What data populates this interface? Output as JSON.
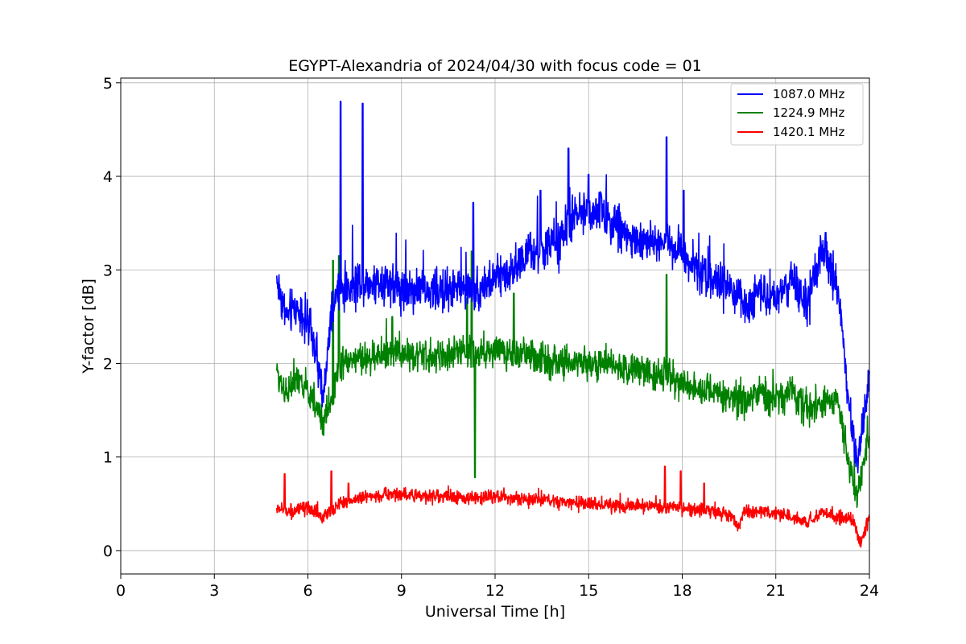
{
  "chart_data": {
    "type": "line",
    "title": "EGYPT-Alexandria of 2024/04/30 with focus code = 01",
    "xlabel": "Universal Time [h]",
    "ylabel": "Y-factor [dB]",
    "xlim": [
      0,
      24
    ],
    "ylim": [
      -0.25,
      5.05
    ],
    "xticks": [
      0,
      3,
      6,
      9,
      12,
      15,
      18,
      21,
      24
    ],
    "yticks": [
      0,
      1,
      2,
      3,
      4,
      5
    ],
    "grid": true,
    "legend_position": "top-right",
    "series": [
      {
        "name": "1087.0 MHz",
        "color": "#0000ff",
        "x": [
          5.0,
          5.3,
          5.6,
          5.9,
          6.2,
          6.5,
          6.6,
          6.8,
          7.0,
          7.3,
          7.6,
          8.0,
          8.5,
          9.0,
          9.5,
          10.0,
          10.5,
          11.0,
          11.5,
          12.0,
          12.5,
          13.0,
          13.5,
          14.0,
          14.5,
          15.0,
          15.5,
          16.0,
          16.5,
          17.0,
          17.5,
          18.0,
          18.5,
          19.0,
          19.5,
          20.0,
          20.5,
          21.0,
          21.5,
          22.0,
          22.5,
          23.0,
          23.3,
          23.6,
          23.8,
          24.0
        ],
        "y": [
          2.9,
          2.5,
          2.6,
          2.5,
          2.2,
          1.6,
          2.0,
          2.6,
          2.8,
          2.8,
          2.9,
          2.85,
          2.9,
          2.8,
          2.8,
          2.75,
          2.8,
          2.8,
          2.8,
          2.9,
          3.0,
          3.15,
          3.2,
          3.3,
          3.55,
          3.65,
          3.6,
          3.45,
          3.3,
          3.3,
          3.3,
          3.2,
          3.0,
          2.9,
          2.8,
          2.6,
          2.8,
          2.7,
          2.9,
          2.6,
          3.2,
          2.8,
          1.7,
          0.9,
          1.4,
          1.9
        ],
        "spikes": [
          [
            7.05,
            4.8
          ],
          [
            7.75,
            4.78
          ],
          [
            14.35,
            4.3
          ],
          [
            17.5,
            4.42
          ],
          [
            15.0,
            4.02
          ],
          [
            11.3,
            3.72
          ],
          [
            13.45,
            3.85
          ],
          [
            18.05,
            3.85
          ],
          [
            22.6,
            3.4
          ]
        ]
      },
      {
        "name": "1224.9 MHz",
        "color": "#008000",
        "x": [
          5.0,
          5.3,
          5.6,
          5.9,
          6.2,
          6.5,
          6.8,
          7.0,
          7.5,
          8.0,
          8.5,
          9.0,
          9.5,
          10.0,
          10.5,
          11.0,
          11.5,
          12.0,
          12.5,
          13.0,
          13.5,
          14.0,
          14.5,
          15.0,
          15.5,
          16.0,
          16.5,
          17.0,
          17.5,
          18.0,
          18.5,
          19.0,
          19.5,
          20.0,
          20.5,
          21.0,
          21.5,
          22.0,
          22.5,
          23.0,
          23.3,
          23.6,
          23.8,
          24.0
        ],
        "y": [
          1.9,
          1.7,
          1.8,
          1.75,
          1.6,
          1.35,
          1.7,
          2.0,
          2.05,
          2.05,
          2.1,
          2.1,
          2.1,
          2.05,
          2.1,
          2.15,
          2.1,
          2.15,
          2.1,
          2.1,
          2.05,
          2.0,
          2.0,
          2.0,
          2.0,
          1.95,
          1.95,
          1.9,
          1.9,
          1.8,
          1.7,
          1.7,
          1.65,
          1.6,
          1.7,
          1.6,
          1.7,
          1.5,
          1.6,
          1.6,
          1.0,
          0.6,
          0.9,
          1.2
        ],
        "spikes": [
          [
            11.35,
            0.78
          ],
          [
            7.0,
            3.15
          ],
          [
            6.8,
            3.1
          ],
          [
            11.25,
            3.2
          ],
          [
            12.6,
            2.75
          ],
          [
            17.5,
            2.95
          ],
          [
            8.7,
            2.5
          ],
          [
            11.1,
            2.7
          ]
        ]
      },
      {
        "name": "1420.1 MHz",
        "color": "#ff0000",
        "x": [
          5.0,
          5.5,
          6.0,
          6.5,
          7.0,
          7.5,
          8.0,
          8.5,
          9.0,
          10.0,
          11.0,
          12.0,
          13.0,
          14.0,
          15.0,
          16.0,
          17.0,
          18.0,
          19.0,
          19.5,
          19.8,
          20.0,
          20.5,
          21.0,
          21.5,
          22.0,
          22.5,
          23.0,
          23.5,
          23.7,
          24.0
        ],
        "y": [
          0.45,
          0.42,
          0.45,
          0.35,
          0.5,
          0.55,
          0.58,
          0.6,
          0.6,
          0.58,
          0.56,
          0.58,
          0.55,
          0.52,
          0.5,
          0.48,
          0.47,
          0.45,
          0.42,
          0.38,
          0.25,
          0.42,
          0.42,
          0.4,
          0.35,
          0.3,
          0.42,
          0.35,
          0.32,
          0.08,
          0.35
        ],
        "spikes": [
          [
            5.25,
            0.82
          ],
          [
            6.75,
            0.85
          ],
          [
            17.45,
            0.9
          ],
          [
            17.95,
            0.85
          ],
          [
            18.7,
            0.72
          ],
          [
            7.3,
            0.72
          ]
        ]
      }
    ]
  }
}
